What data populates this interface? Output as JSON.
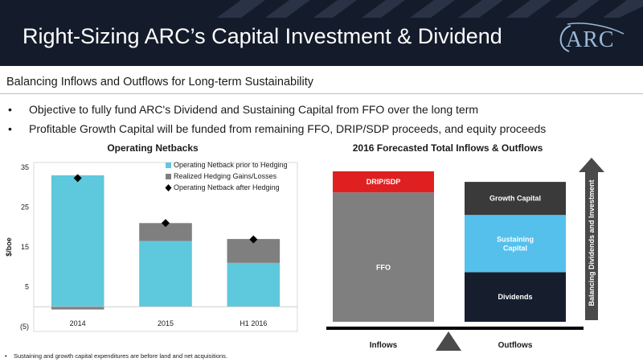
{
  "header": {
    "title": "Right-Sizing ARC’s Capital Investment & Dividend",
    "logo_text": "ARC"
  },
  "subtitle": "Balancing Inflows and Outflows for Long-term Sustainability",
  "bullets": [
    "Objective to fully fund ARC's Dividend and Sustaining Capital from FFO over the long term",
    "Profitable Growth Capital will be funded from remaining FFO, DRIP/SDP proceeds, and equity proceeds"
  ],
  "bullet_glyph": "•",
  "footnote": "Sustaining and growth capital expenditures are before land and net acquisitions.",
  "colors": {
    "header_bg": "#141c2b",
    "operating_netback": "#5ec8dc",
    "hedging": "#7f7f7f",
    "ffo": "#7f7f7f",
    "drip": "#e02020",
    "growth_capital": "#3a3a3a",
    "sustaining_capital": "#55c0ec",
    "dividends": "#161e2e",
    "arrow": "#4a4a4a"
  },
  "chart_data": [
    {
      "type": "bar",
      "title": "Operating Netbacks",
      "ylabel": "$/boe",
      "ylim": [
        -5,
        35
      ],
      "yticks": [
        35,
        25,
        15,
        5,
        -5
      ],
      "ytick_labels": [
        "35",
        "25",
        "15",
        "5",
        "(5)"
      ],
      "categories": [
        "2014",
        "2015",
        "H1 2016"
      ],
      "series": [
        {
          "name": "Operating Netback prior to Hedging",
          "kind": "bar",
          "values": [
            33,
            16.5,
            11
          ]
        },
        {
          "name": "Realized Hedging Gains/Losses",
          "kind": "bar",
          "values": [
            -0.7,
            4.5,
            6
          ]
        },
        {
          "name": "Operating Netback after Hedging",
          "kind": "marker",
          "values": [
            32.3,
            21,
            16.9
          ]
        }
      ],
      "legend": "top-right"
    },
    {
      "type": "bar",
      "title": "2016 Forecasted Total Inflows & Outflows",
      "categories": [
        "Inflows",
        "Outflows"
      ],
      "stacks": [
        {
          "category": "Inflows",
          "segments": [
            {
              "label": "FFO",
              "value": 86
            },
            {
              "label": "DRIP/SDP",
              "value": 14
            }
          ]
        },
        {
          "category": "Outflows",
          "segments": [
            {
              "label": "Dividends",
              "value": 33
            },
            {
              "label": "Sustaining\nCapital",
              "value": 38
            },
            {
              "label": "Growth Capital",
              "value": 22
            }
          ]
        }
      ],
      "arrow_label": "Balancing Dividends and Investment"
    }
  ]
}
